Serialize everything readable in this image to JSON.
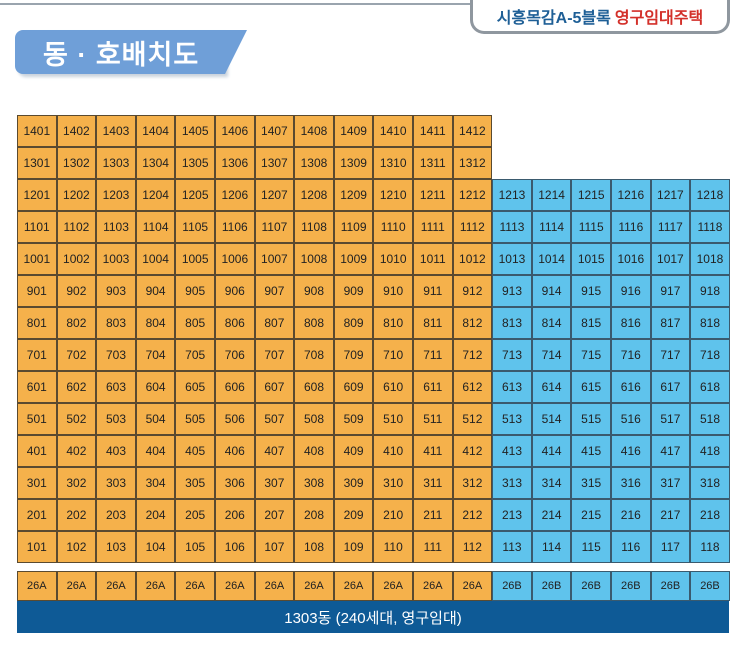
{
  "header": {
    "complex_name": "시흥목감A-5블록",
    "housing_type": "영구임대주택"
  },
  "page_title": "동 · 호배치도",
  "building_label": "1303동 (240세대, 영구임대)",
  "colors": {
    "orange_unit": "#f5b14b",
    "blue_unit": "#5fc3ec",
    "footer_bg": "#0e5a96"
  },
  "floors": [
    [
      "1401",
      "1402",
      "1403",
      "1404",
      "1405",
      "1406",
      "1407",
      "1408",
      "1409",
      "1410",
      "1411",
      "1412"
    ],
    [
      "1301",
      "1302",
      "1303",
      "1304",
      "1305",
      "1306",
      "1307",
      "1308",
      "1309",
      "1310",
      "1311",
      "1312"
    ],
    [
      "1201",
      "1202",
      "1203",
      "1204",
      "1205",
      "1206",
      "1207",
      "1208",
      "1209",
      "1210",
      "1211",
      "1212",
      "1213",
      "1214",
      "1215",
      "1216",
      "1217",
      "1218"
    ],
    [
      "1101",
      "1102",
      "1103",
      "1104",
      "1105",
      "1106",
      "1107",
      "1108",
      "1109",
      "1110",
      "1111",
      "1112",
      "1113",
      "1114",
      "1115",
      "1116",
      "1117",
      "1118"
    ],
    [
      "1001",
      "1002",
      "1003",
      "1004",
      "1005",
      "1006",
      "1007",
      "1008",
      "1009",
      "1010",
      "1011",
      "1012",
      "1013",
      "1014",
      "1015",
      "1016",
      "1017",
      "1018"
    ],
    [
      "901",
      "902",
      "903",
      "904",
      "905",
      "906",
      "907",
      "908",
      "909",
      "910",
      "911",
      "912",
      "913",
      "914",
      "915",
      "916",
      "917",
      "918"
    ],
    [
      "801",
      "802",
      "803",
      "804",
      "805",
      "806",
      "807",
      "808",
      "809",
      "810",
      "811",
      "812",
      "813",
      "814",
      "815",
      "816",
      "817",
      "818"
    ],
    [
      "701",
      "702",
      "703",
      "704",
      "705",
      "706",
      "707",
      "708",
      "709",
      "710",
      "711",
      "712",
      "713",
      "714",
      "715",
      "716",
      "717",
      "718"
    ],
    [
      "601",
      "602",
      "603",
      "604",
      "605",
      "606",
      "607",
      "608",
      "609",
      "610",
      "611",
      "612",
      "613",
      "614",
      "615",
      "616",
      "617",
      "618"
    ],
    [
      "501",
      "502",
      "503",
      "504",
      "505",
      "506",
      "507",
      "508",
      "509",
      "510",
      "511",
      "512",
      "513",
      "514",
      "515",
      "516",
      "517",
      "518"
    ],
    [
      "401",
      "402",
      "403",
      "404",
      "405",
      "406",
      "407",
      "408",
      "409",
      "410",
      "411",
      "412",
      "413",
      "414",
      "415",
      "416",
      "417",
      "418"
    ],
    [
      "301",
      "302",
      "303",
      "304",
      "305",
      "306",
      "307",
      "308",
      "309",
      "310",
      "311",
      "312",
      "313",
      "314",
      "315",
      "316",
      "317",
      "318"
    ],
    [
      "201",
      "202",
      "203",
      "204",
      "205",
      "206",
      "207",
      "208",
      "209",
      "210",
      "211",
      "212",
      "213",
      "214",
      "215",
      "216",
      "217",
      "218"
    ],
    [
      "101",
      "102",
      "103",
      "104",
      "105",
      "106",
      "107",
      "108",
      "109",
      "110",
      "111",
      "112",
      "113",
      "114",
      "115",
      "116",
      "117",
      "118"
    ]
  ],
  "unit_types": [
    "26A",
    "26A",
    "26A",
    "26A",
    "26A",
    "26A",
    "26A",
    "26A",
    "26A",
    "26A",
    "26A",
    "26A",
    "26B",
    "26B",
    "26B",
    "26B",
    "26B",
    "26B"
  ]
}
